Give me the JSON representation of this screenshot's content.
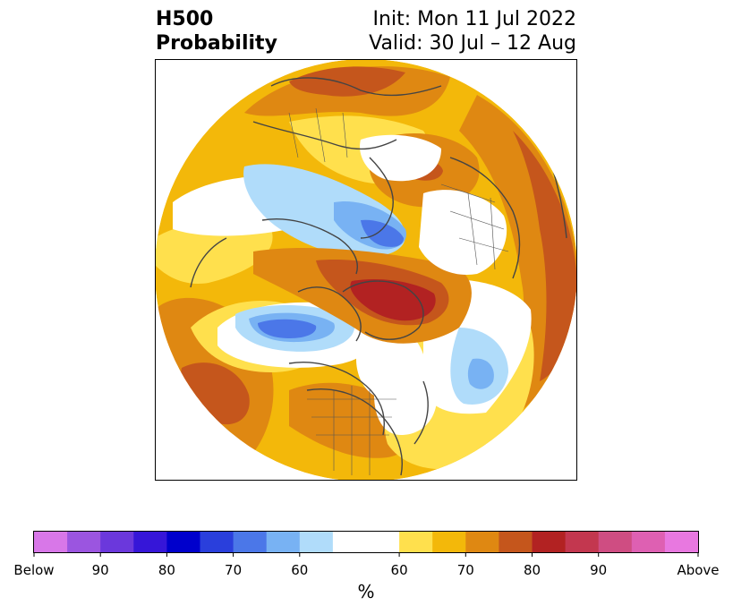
{
  "header": {
    "field": "H500",
    "product": "Probability",
    "init": "Init: Mon 11 Jul 2022",
    "valid": "Valid: 30 Jul – 12 Aug"
  },
  "colorbar": {
    "unit": "%",
    "tick_labels": [
      "Below",
      "90",
      "80",
      "70",
      "60",
      "60",
      "70",
      "80",
      "90",
      "Above"
    ],
    "bins": [
      {
        "color": "#d877e8"
      },
      {
        "color": "#9b55e0"
      },
      {
        "color": "#6b38dc"
      },
      {
        "color": "#3616d8"
      },
      {
        "color": "#0000cc"
      },
      {
        "color": "#2a3fdc"
      },
      {
        "color": "#4b77e8"
      },
      {
        "color": "#78b2f3"
      },
      {
        "color": "#b0dcfa"
      },
      {
        "color": "#ffffff"
      },
      {
        "color": "#ffe04d"
      },
      {
        "color": "#f3b80a"
      },
      {
        "color": "#df8812"
      },
      {
        "color": "#c5561c"
      },
      {
        "color": "#b22222"
      },
      {
        "color": "#c3374f"
      },
      {
        "color": "#cf4d82"
      },
      {
        "color": "#de60b2"
      },
      {
        "color": "#e878e0"
      }
    ]
  },
  "map": {
    "projection": "north-polar-stereographic",
    "features": [
      {
        "name": "anomaly-above-greenland",
        "category": "Above",
        "peak_percent": "80"
      },
      {
        "name": "anomaly-above-alaska-pacific",
        "category": "Above",
        "peak_percent": "75"
      },
      {
        "name": "anomaly-above-siberia",
        "category": "Above",
        "peak_percent": "75"
      },
      {
        "name": "anomaly-above-north-america",
        "category": "Above",
        "peak_percent": "70"
      },
      {
        "name": "anomaly-below-siberia-arctic",
        "category": "Below",
        "peak_percent": "70"
      },
      {
        "name": "anomaly-below-bering",
        "category": "Below",
        "peak_percent": "70"
      },
      {
        "name": "anomaly-below-europe",
        "category": "Below",
        "peak_percent": "60"
      },
      {
        "name": "anomaly-below-atlantic",
        "category": "Below",
        "peak_percent": "65"
      }
    ]
  }
}
